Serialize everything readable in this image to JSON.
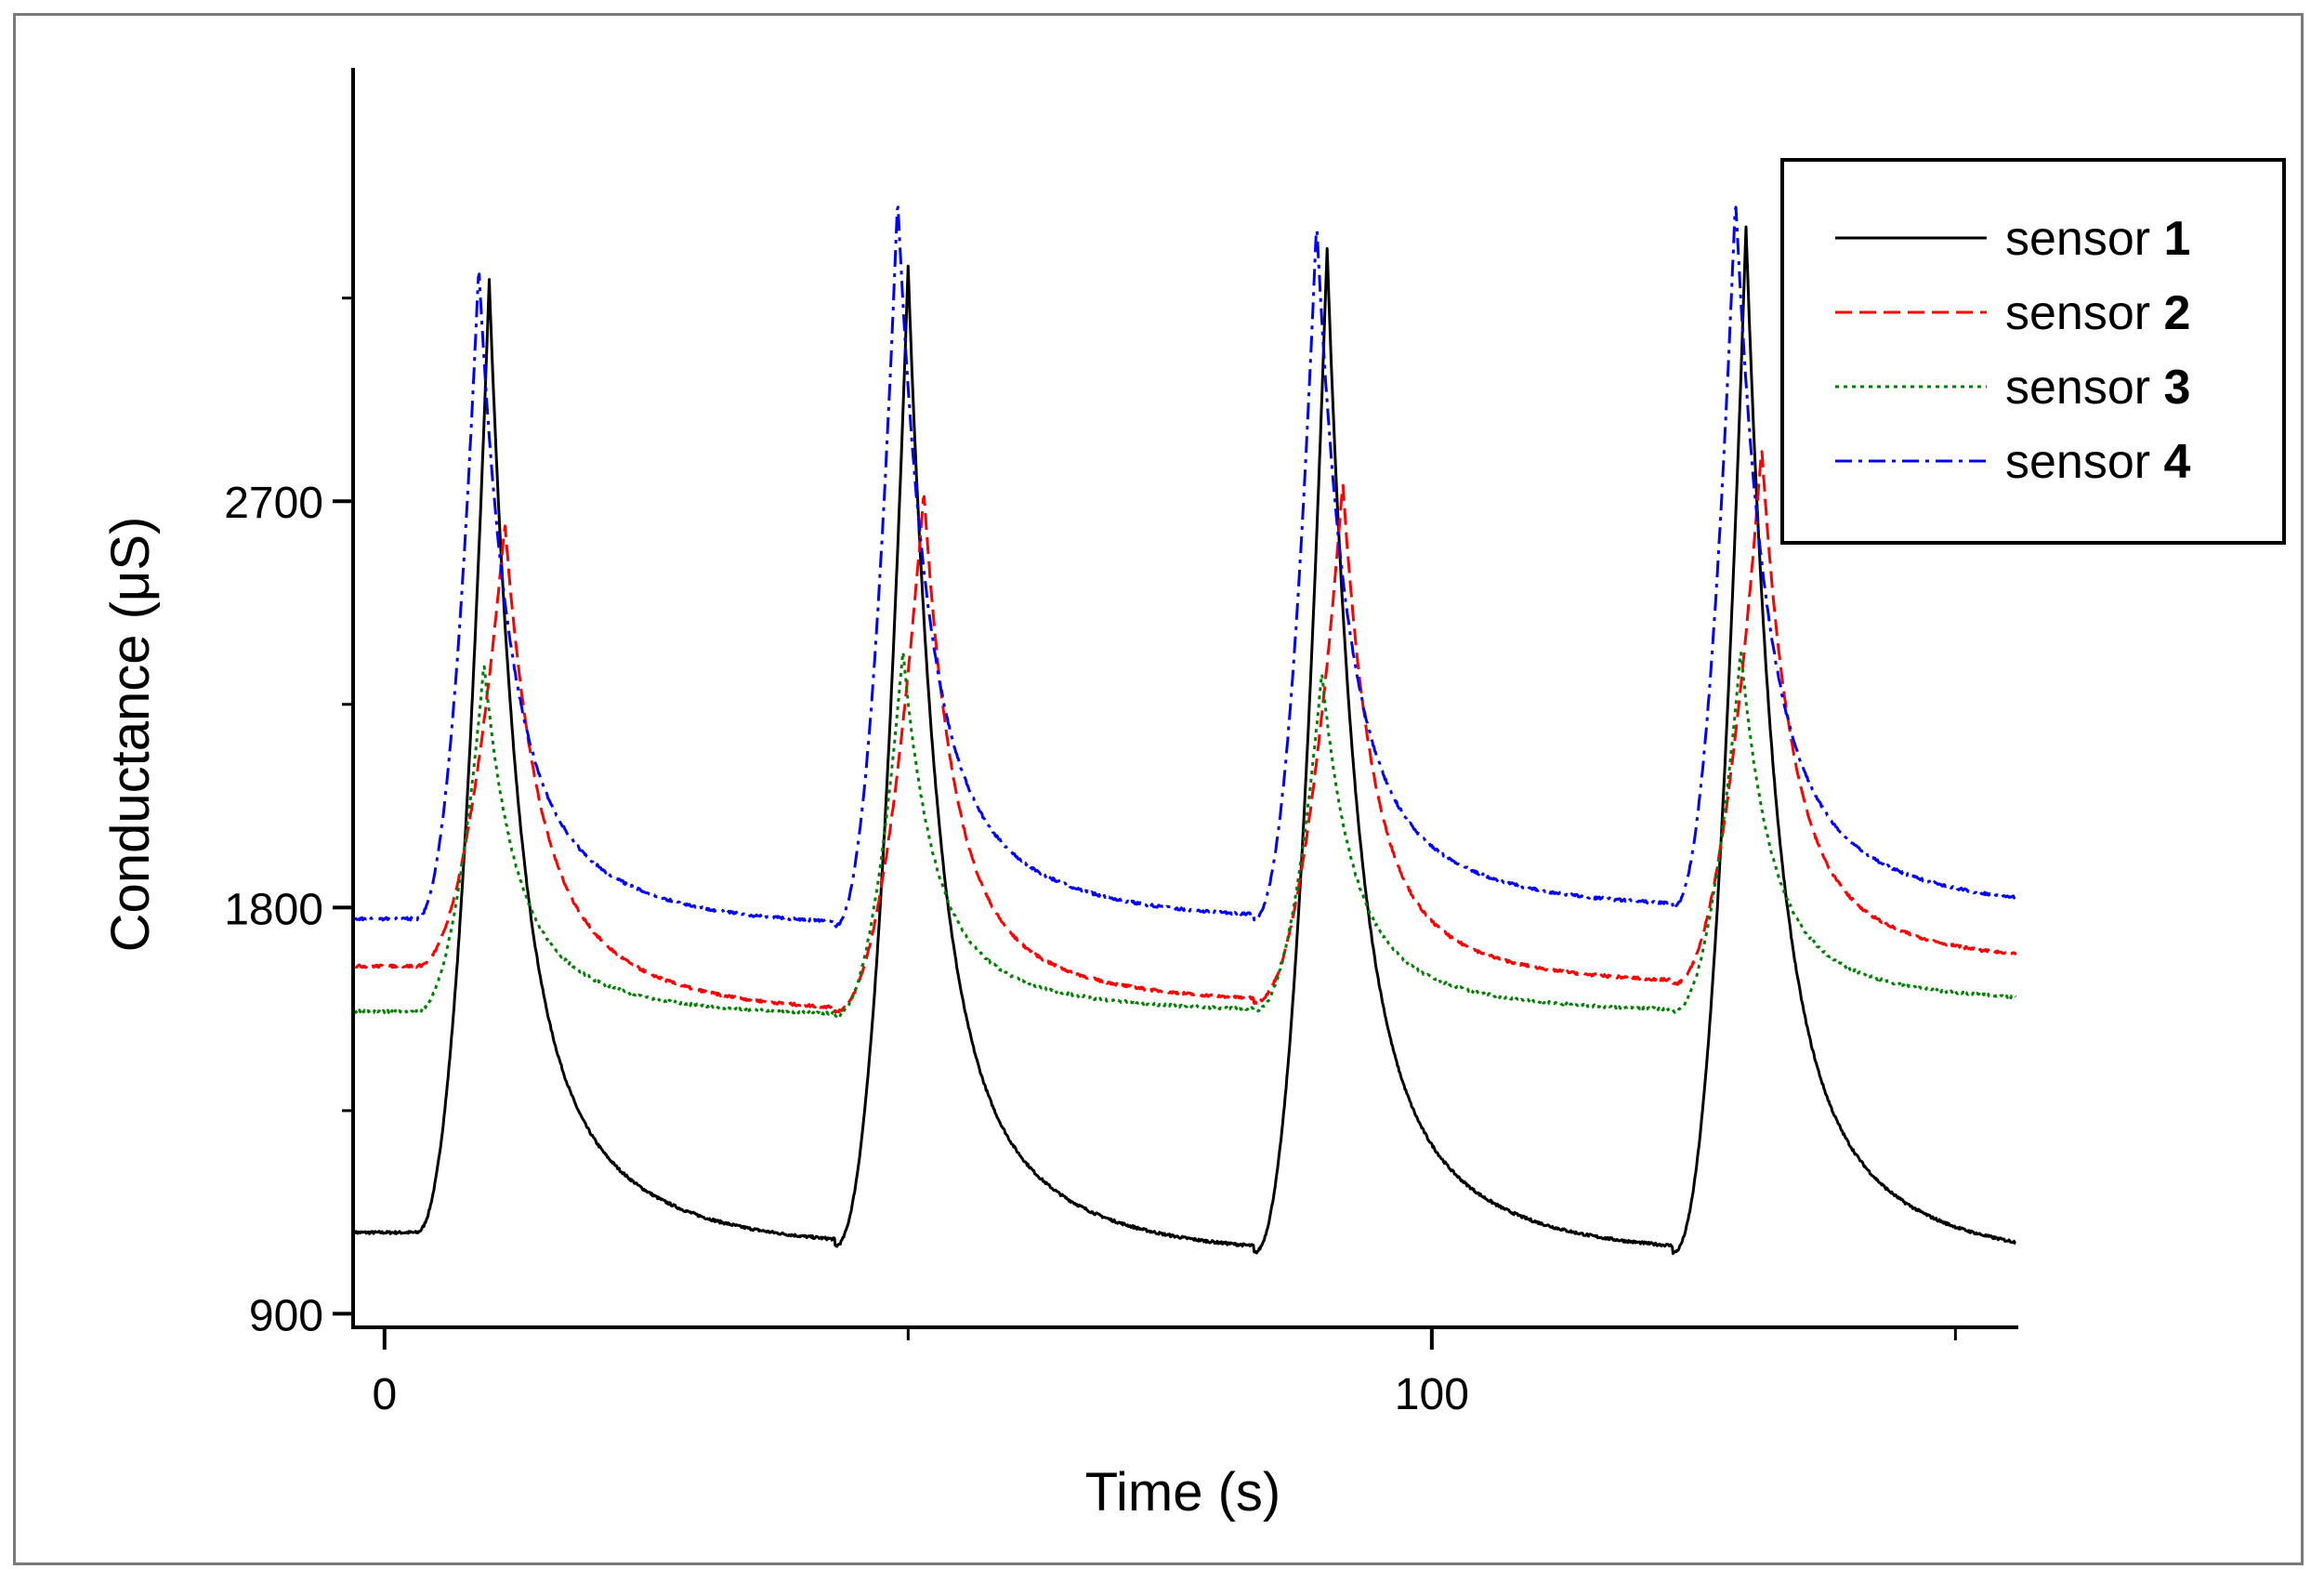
{
  "chart_data": {
    "type": "line",
    "title": "",
    "xlabel": "Time (s)",
    "ylabel": "Conductance (μS)",
    "xlim": [
      -3,
      156
    ],
    "ylim": [
      870,
      3660
    ],
    "xticks": [
      0,
      100
    ],
    "yticks": [
      900,
      1800,
      2700
    ],
    "grid": false,
    "legend_position": "top-right",
    "pulse_starts_s": [
      3,
      43,
      83,
      123
    ],
    "series": [
      {
        "name": "sensor 1",
        "legend_prefix": "sensor ",
        "legend_number": "1",
        "color": "#000000",
        "dash": "solid",
        "baselines_uS": [
          1080,
          1050,
          1035,
          1035,
          1022
        ],
        "peaks_uS": [
          3190,
          3220,
          3260,
          3310
        ],
        "peak_offset_s": 7
      },
      {
        "name": "sensor 2",
        "legend_prefix": "sensor ",
        "legend_number": "2",
        "color": "#ff0000",
        "dash": "dashed",
        "baselines_uS": [
          1670,
          1570,
          1590,
          1630,
          1675
        ],
        "peaks_uS": [
          2650,
          2720,
          2740,
          2820
        ],
        "peak_offset_s": 8.5
      },
      {
        "name": "sensor 3",
        "legend_prefix": "sensor ",
        "legend_number": "3",
        "color": "#008000",
        "dash": "dotted",
        "baselines_uS": [
          1570,
          1560,
          1570,
          1570,
          1590
        ],
        "peaks_uS": [
          2340,
          2370,
          2320,
          2370
        ],
        "peak_offset_s": 6.5
      },
      {
        "name": "sensor 4",
        "legend_prefix": "sensor ",
        "legend_number": "4",
        "color": "#0000ff",
        "dash": "dash-dot",
        "baselines_uS": [
          1775,
          1760,
          1775,
          1800,
          1800
        ],
        "peaks_uS": [
          3220,
          3370,
          3320,
          3370
        ],
        "peak_offset_s": 6
      }
    ]
  }
}
